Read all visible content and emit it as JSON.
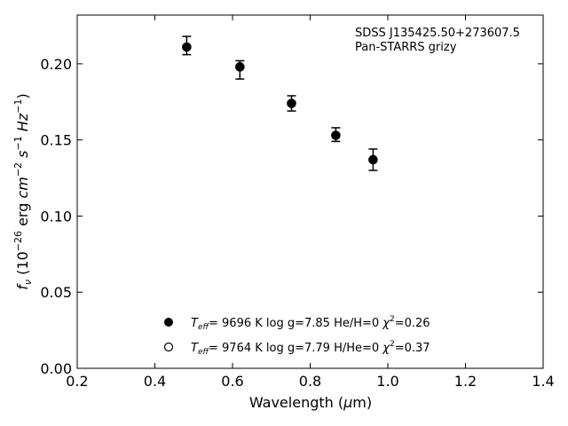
{
  "chart_data": {
    "type": "scatter",
    "title": "",
    "xlabel": "Wavelength (μm)",
    "ylabel": "fν (10⁻²⁶ erg cm⁻² s⁻¹ Hz⁻¹)",
    "xlim": [
      0.2,
      1.4
    ],
    "ylim": [
      0.0,
      0.232
    ],
    "xticks": [
      "0.2",
      "0.4",
      "0.6",
      "0.8",
      "1.0",
      "1.2",
      "1.4"
    ],
    "yticks": [
      "0.00",
      "0.05",
      "0.10",
      "0.15",
      "0.20"
    ],
    "grid": false,
    "annotations": [
      "SDSS J135425.50+273607.5",
      "Pan-STARRS grizy"
    ],
    "series": [
      {
        "marker": "filled-circle",
        "x": [
          0.482,
          0.619,
          0.752,
          0.866,
          0.962
        ],
        "y": [
          0.211,
          0.198,
          0.174,
          0.153,
          0.137
        ],
        "yerr_low": [
          0.211,
          0.198,
          0.174,
          0.153,
          0.137
        ],
        "y_lower": [
          0.206,
          0.19,
          0.169,
          0.149,
          0.13
        ],
        "y_upper": [
          0.218,
          0.202,
          0.179,
          0.158,
          0.144
        ]
      }
    ],
    "legend": {
      "placement": "lower-center",
      "entries": [
        {
          "marker": "filled-circle",
          "teff_label": "T",
          "teff_sub": "eff",
          "text": "=  9696 K  log g=7.85  He/H=0  ",
          "chi_sup": "2",
          "chi_val": "=0.26"
        },
        {
          "marker": "open-circle",
          "teff_label": "T",
          "teff_sub": "eff",
          "text": "=  9764 K  log g=7.79  H/He=0  ",
          "chi_sup": "2",
          "chi_val": "=0.37"
        }
      ]
    }
  }
}
